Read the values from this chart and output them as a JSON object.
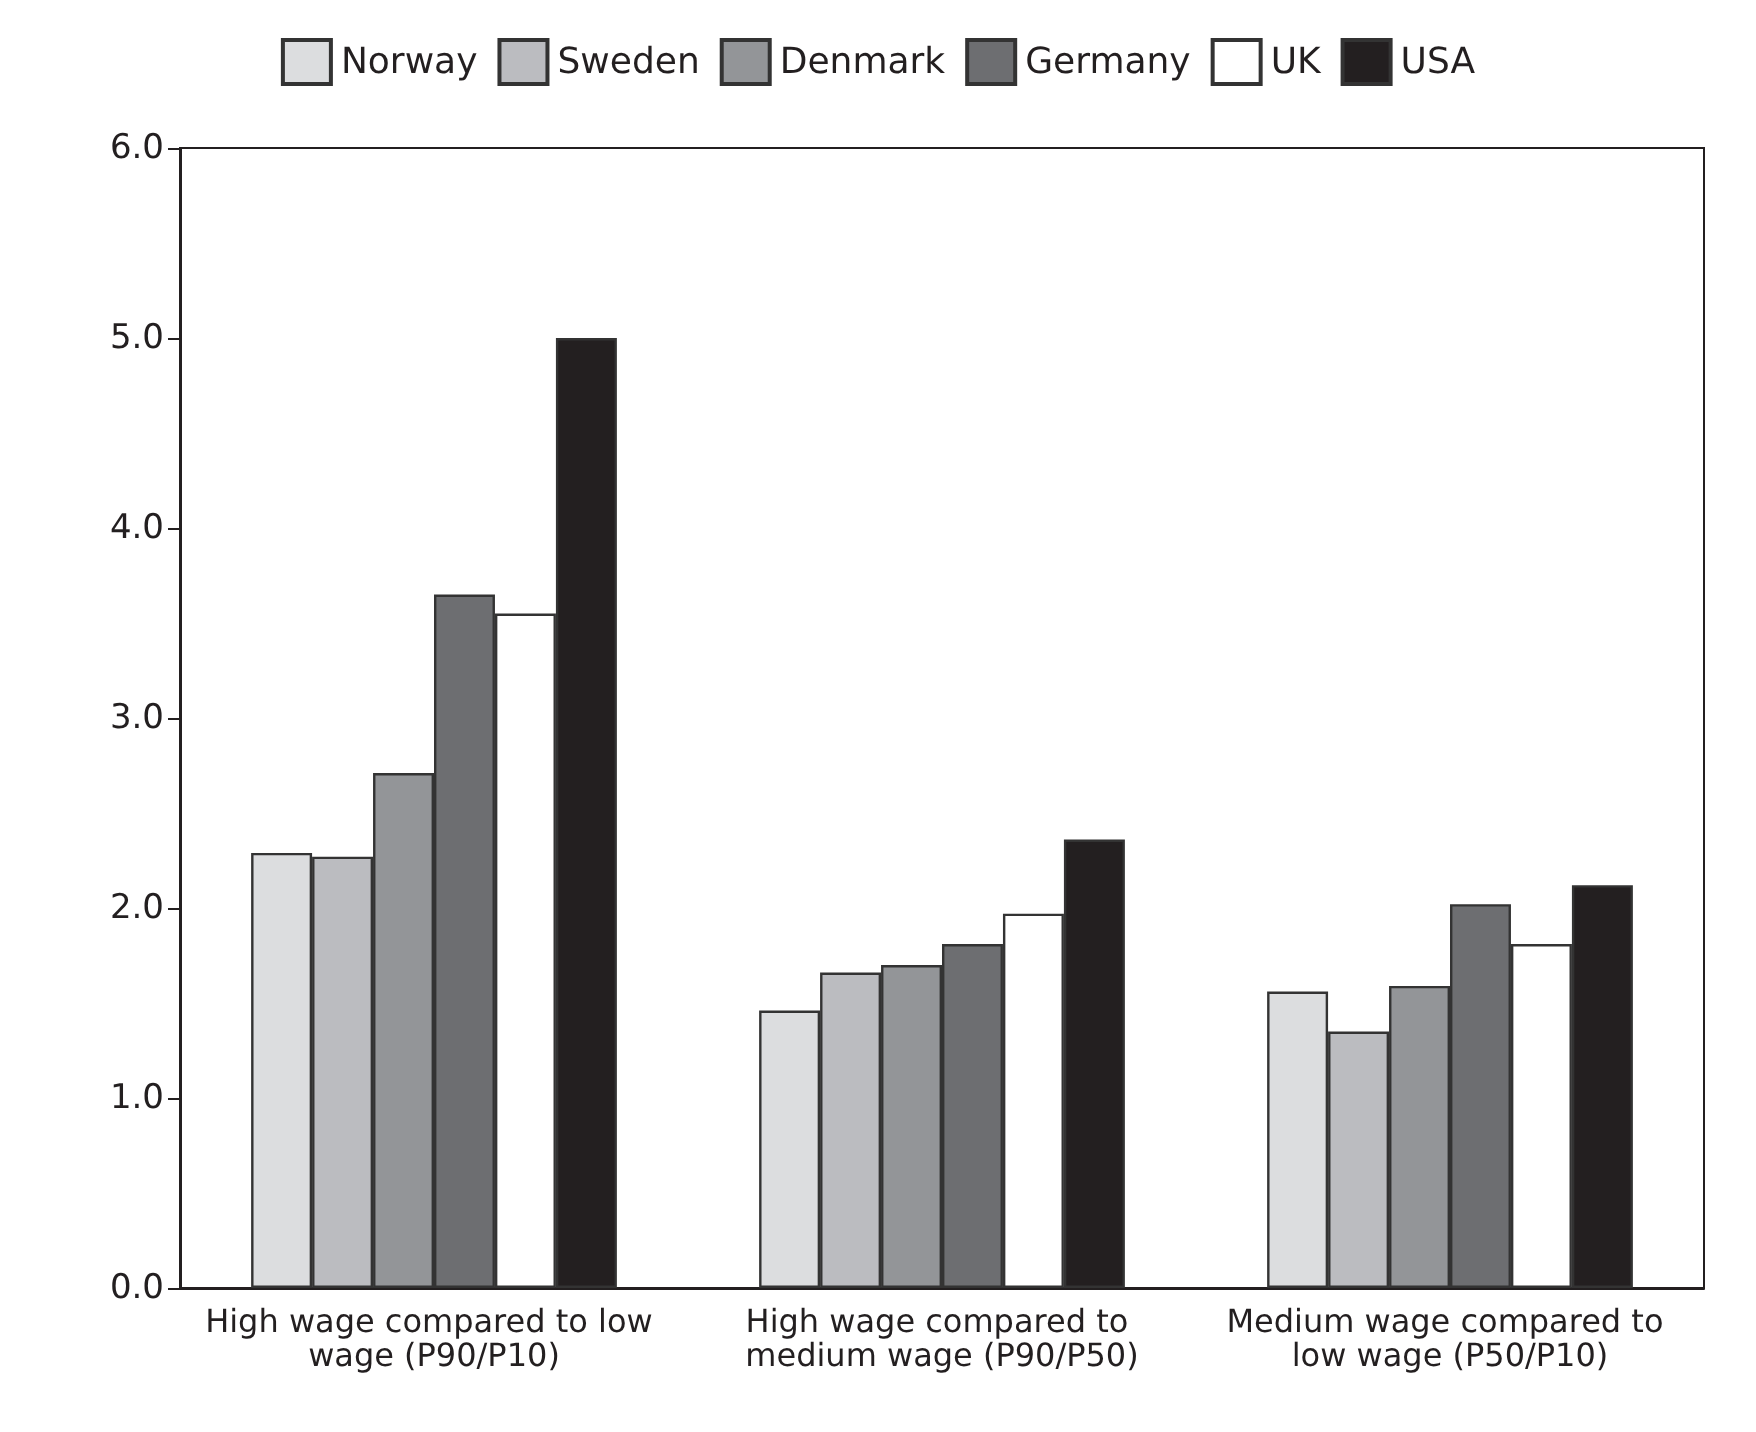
{
  "chart_data": {
    "type": "bar",
    "categories": [
      "High wage compared to low wage (P90/P10)",
      "High wage compared to medium wage (P90/P50)",
      "Medium wage compared to low wage (P50/P10)"
    ],
    "series": [
      {
        "name": "Norway",
        "color": "#dcdddf",
        "values": [
          2.29,
          1.46,
          1.56
        ]
      },
      {
        "name": "Sweden",
        "color": "#bbbcc0",
        "values": [
          2.27,
          1.66,
          1.35
        ]
      },
      {
        "name": "Denmark",
        "color": "#939598",
        "values": [
          2.71,
          1.7,
          1.59
        ]
      },
      {
        "name": "Germany",
        "color": "#6d6e71",
        "values": [
          3.65,
          1.81,
          2.02
        ]
      },
      {
        "name": "UK",
        "color": "#ffffff",
        "values": [
          3.55,
          1.97,
          1.81
        ]
      },
      {
        "name": "USA",
        "color": "#231f20",
        "values": [
          5.0,
          2.36,
          2.12
        ]
      }
    ],
    "ylim": [
      0,
      6
    ],
    "yticks": [
      {
        "value": 0,
        "label": "0.0"
      },
      {
        "value": 1,
        "label": "1.0"
      },
      {
        "value": 2,
        "label": "2.0"
      },
      {
        "value": 3,
        "label": "3.0"
      },
      {
        "value": 4,
        "label": "4.0"
      },
      {
        "value": 5,
        "label": "5.0"
      },
      {
        "value": 6,
        "label": "6.0"
      }
    ],
    "grid": false,
    "legend": "top"
  }
}
